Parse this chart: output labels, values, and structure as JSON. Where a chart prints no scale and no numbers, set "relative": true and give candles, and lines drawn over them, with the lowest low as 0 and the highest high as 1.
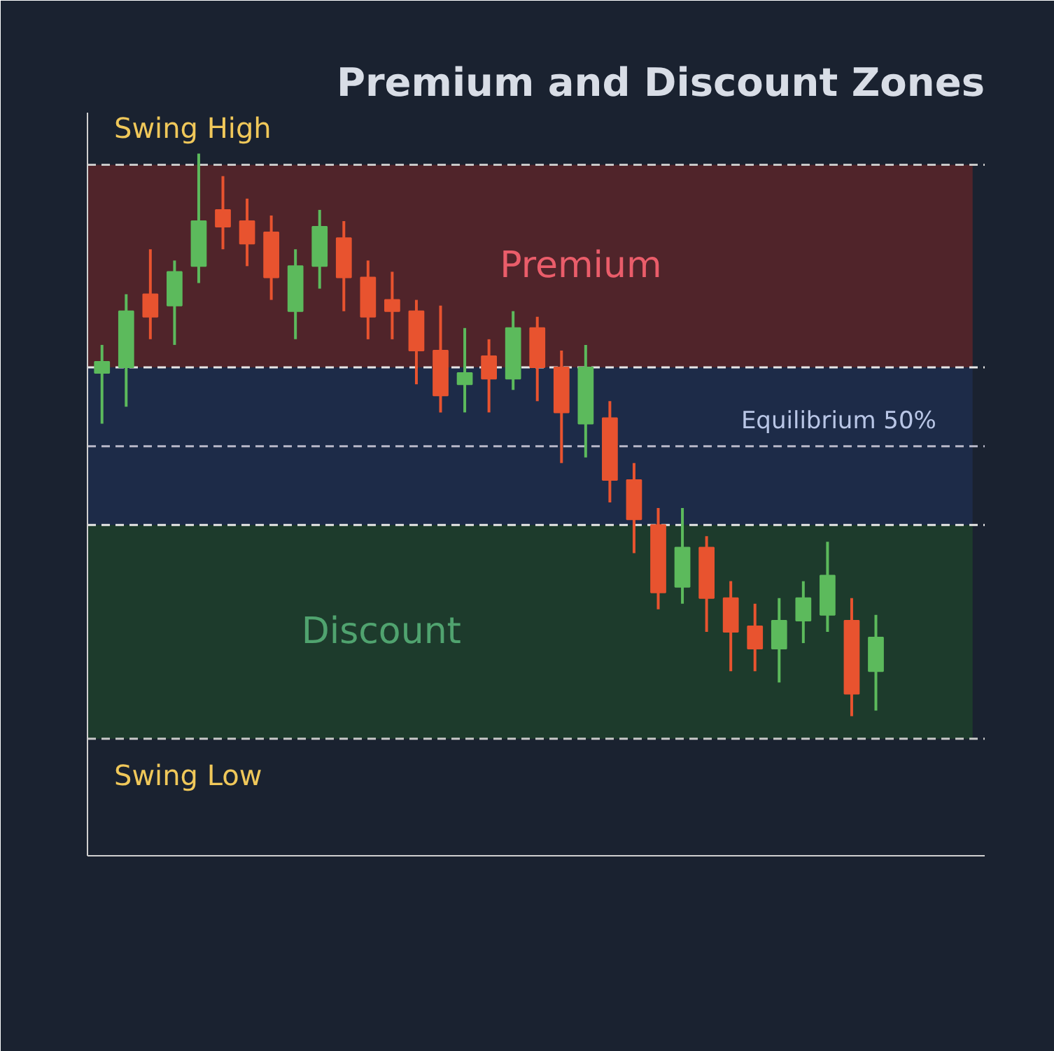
{
  "chart_data": {
    "type": "candlestick",
    "title": "Premium and Discount Zones",
    "relative": true,
    "categories": [
      null,
      null,
      null,
      null,
      null,
      null,
      null,
      null,
      null,
      null,
      null,
      null,
      null,
      null,
      null,
      null,
      null,
      null,
      null,
      null,
      null,
      null,
      null,
      null,
      null,
      null,
      null,
      null,
      null,
      null,
      null,
      null,
      null
    ],
    "ohlc": [
      [
        0.61,
        0.66,
        0.52,
        0.63
      ],
      [
        0.62,
        0.75,
        0.55,
        0.72
      ],
      [
        0.75,
        0.83,
        0.67,
        0.71
      ],
      [
        0.73,
        0.81,
        0.66,
        0.79
      ],
      [
        0.8,
        1.0,
        0.77,
        0.88
      ],
      [
        0.9,
        0.96,
        0.83,
        0.87
      ],
      [
        0.88,
        0.92,
        0.8,
        0.84
      ],
      [
        0.86,
        0.89,
        0.74,
        0.78
      ],
      [
        0.72,
        0.83,
        0.67,
        0.8
      ],
      [
        0.8,
        0.9,
        0.76,
        0.87
      ],
      [
        0.85,
        0.88,
        0.72,
        0.78
      ],
      [
        0.78,
        0.81,
        0.67,
        0.71
      ],
      [
        0.74,
        0.79,
        0.67,
        0.72
      ],
      [
        0.72,
        0.74,
        0.59,
        0.65
      ],
      [
        0.65,
        0.73,
        0.54,
        0.57
      ],
      [
        0.59,
        0.69,
        0.54,
        0.61
      ],
      [
        0.64,
        0.67,
        0.54,
        0.6
      ],
      [
        0.6,
        0.72,
        0.58,
        0.69
      ],
      [
        0.69,
        0.71,
        0.56,
        0.62
      ],
      [
        0.62,
        0.65,
        0.45,
        0.54
      ],
      [
        0.52,
        0.66,
        0.46,
        0.62
      ],
      [
        0.53,
        0.56,
        0.38,
        0.42
      ],
      [
        0.42,
        0.45,
        0.29,
        0.35
      ],
      [
        0.34,
        0.37,
        0.19,
        0.22
      ],
      [
        0.23,
        0.37,
        0.2,
        0.3
      ],
      [
        0.3,
        0.32,
        0.15,
        0.21
      ],
      [
        0.21,
        0.24,
        0.08,
        0.15
      ],
      [
        0.16,
        0.2,
        0.08,
        0.12
      ],
      [
        0.12,
        0.21,
        0.06,
        0.17
      ],
      [
        0.17,
        0.24,
        0.13,
        0.21
      ],
      [
        0.18,
        0.31,
        0.15,
        0.25
      ],
      [
        0.17,
        0.21,
        0.0,
        0.04
      ],
      [
        0.08,
        0.18,
        0.01,
        0.14
      ]
    ],
    "bands": [
      {
        "axis": "y",
        "from": 0.62,
        "to": 0.98,
        "label": "Premium",
        "color": "#5a2429"
      },
      {
        "axis": "y",
        "from": 0.34,
        "to": 0.62,
        "label": null,
        "color": "#1f2d4c"
      },
      {
        "axis": "y",
        "from": -0.04,
        "to": 0.34,
        "label": "Discount",
        "color": "#1f3f2b"
      }
    ],
    "ref_lines": [
      {
        "axis": "y",
        "value": 0.98,
        "label": "Swing High",
        "color": "#c8c8c8",
        "line_style": "dashed"
      },
      {
        "axis": "y",
        "value": 0.62,
        "label": null,
        "color": "#e6e6e6",
        "line_style": "dashed"
      },
      {
        "axis": "y",
        "value": 0.48,
        "label": "Equilibrium 50%",
        "color": "#b8b8c8",
        "line_style": "dashed"
      },
      {
        "axis": "y",
        "value": 0.34,
        "label": null,
        "color": "#e6e6e6",
        "line_style": "dashed"
      },
      {
        "axis": "y",
        "value": -0.04,
        "label": "Swing Low",
        "color": "#c8c8c8",
        "line_style": "dashed"
      }
    ]
  }
}
